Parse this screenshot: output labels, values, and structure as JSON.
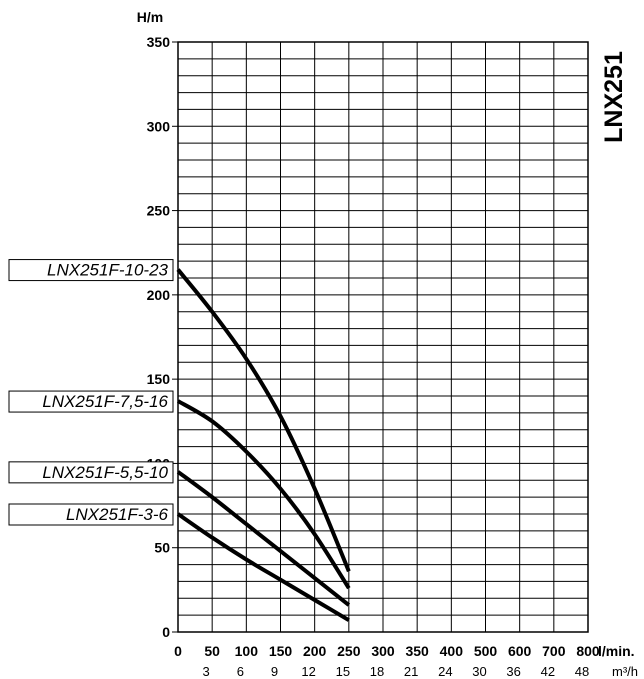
{
  "chart_data": {
    "type": "line",
    "title": "LNX251",
    "ylabel": "H/m",
    "xlabel": "l/min.",
    "xlabel_secondary": "m³/h",
    "xlim": [
      0,
      800
    ],
    "ylim": [
      0,
      350
    ],
    "x_ticks": [
      0,
      50,
      100,
      150,
      200,
      250,
      300,
      350,
      400,
      500,
      600,
      700,
      800
    ],
    "x_ticks_secondary": [
      "3",
      "6",
      "9",
      "12",
      "15",
      "18",
      "21",
      "24",
      "30",
      "36",
      "42",
      "48"
    ],
    "y_ticks": [
      0,
      50,
      100,
      150,
      200,
      250,
      300,
      350
    ],
    "grid": true,
    "series": [
      {
        "name": "LNX251F-10-23",
        "x": [
          0,
          50,
          100,
          150,
          200,
          250
        ],
        "y": [
          215,
          190,
          162,
          128,
          85,
          36
        ]
      },
      {
        "name": "LNX251F-7,5-16",
        "x": [
          0,
          50,
          100,
          150,
          200,
          250
        ],
        "y": [
          137,
          125,
          107,
          85,
          58,
          26
        ]
      },
      {
        "name": "LNX251F-5,5-10",
        "x": [
          0,
          50,
          100,
          150,
          200,
          250
        ],
        "y": [
          95,
          80,
          64,
          48,
          32,
          16
        ]
      },
      {
        "name": "LNX251F-3-6",
        "x": [
          0,
          50,
          100,
          150,
          200,
          250
        ],
        "y": [
          70,
          56,
          43,
          31,
          19,
          7
        ]
      }
    ]
  }
}
